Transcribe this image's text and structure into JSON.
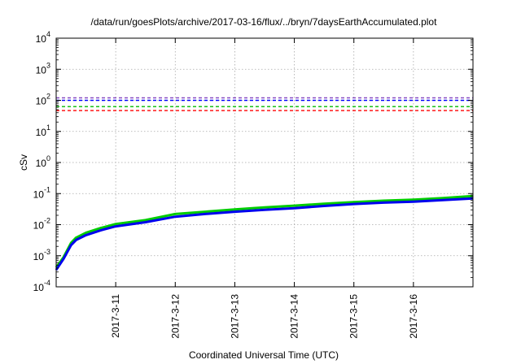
{
  "chart_data": {
    "type": "line",
    "title": "/data/run/goesPlots/archive/2017-03-16/flux/../bryn/7daysEarthAccumulated.plot",
    "xlabel": "Coordinated Universal Time (UTC)",
    "ylabel": "cSv",
    "yscale": "log",
    "ylim": [
      0.0001,
      10000
    ],
    "xlim": [
      "2017-03-10",
      "2017-03-17"
    ],
    "x_ticks": [
      "2017-3-11",
      "2017-3-12",
      "2017-3-13",
      "2017-3-14",
      "2017-3-15",
      "2017-3-16"
    ],
    "y_ticks": [
      {
        "base": "10",
        "exp": "-4"
      },
      {
        "base": "10",
        "exp": "-3"
      },
      {
        "base": "10",
        "exp": "-2"
      },
      {
        "base": "10",
        "exp": "-1"
      },
      {
        "base": "10",
        "exp": "0"
      },
      {
        "base": "10",
        "exp": "1"
      },
      {
        "base": "10",
        "exp": "2"
      },
      {
        "base": "10",
        "exp": "3"
      },
      {
        "base": "10",
        "exp": "4"
      }
    ],
    "grid": true,
    "thresholds": [
      {
        "y": 120,
        "color": "#8040c0",
        "style": "dashed"
      },
      {
        "y": 100,
        "color": "#0000ff",
        "style": "dashed"
      },
      {
        "y": 63,
        "color": "#00bb00",
        "style": "dashed"
      },
      {
        "y": 47,
        "color": "#ff0000",
        "style": "dashed"
      }
    ],
    "series": [
      {
        "color": "#00cc00",
        "x": [
          "2017-03-10T00:00",
          "2017-03-10T03:00",
          "2017-03-10T06:00",
          "2017-03-10T08:00",
          "2017-03-10T12:00",
          "2017-03-10T18:00",
          "2017-03-11T00:00",
          "2017-03-11T12:00",
          "2017-03-12T00:00",
          "2017-03-12T12:00",
          "2017-03-13T00:00",
          "2017-03-13T12:00",
          "2017-03-14T00:00",
          "2017-03-14T12:00",
          "2017-03-15T00:00",
          "2017-03-15T12:00",
          "2017-03-16T00:00",
          "2017-03-16T12:00",
          "2017-03-17T00:00"
        ],
        "values": [
          0.00042,
          0.0009,
          0.0026,
          0.0038,
          0.0055,
          0.0078,
          0.0105,
          0.014,
          0.022,
          0.026,
          0.031,
          0.036,
          0.041,
          0.047,
          0.053,
          0.059,
          0.064,
          0.072,
          0.083
        ]
      },
      {
        "color": "#0000ee",
        "x": [
          "2017-03-10T00:00",
          "2017-03-10T03:00",
          "2017-03-10T06:00",
          "2017-03-10T08:00",
          "2017-03-10T12:00",
          "2017-03-10T18:00",
          "2017-03-11T00:00",
          "2017-03-11T12:00",
          "2017-03-12T00:00",
          "2017-03-12T12:00",
          "2017-03-13T00:00",
          "2017-03-13T12:00",
          "2017-03-14T00:00",
          "2017-03-14T12:00",
          "2017-03-15T00:00",
          "2017-03-15T12:00",
          "2017-03-16T00:00",
          "2017-03-16T12:00",
          "2017-03-17T00:00"
        ],
        "values": [
          0.00035,
          0.0008,
          0.0022,
          0.0032,
          0.0046,
          0.0066,
          0.0088,
          0.012,
          0.018,
          0.022,
          0.026,
          0.03,
          0.034,
          0.04,
          0.046,
          0.051,
          0.055,
          0.062,
          0.07
        ]
      }
    ]
  }
}
